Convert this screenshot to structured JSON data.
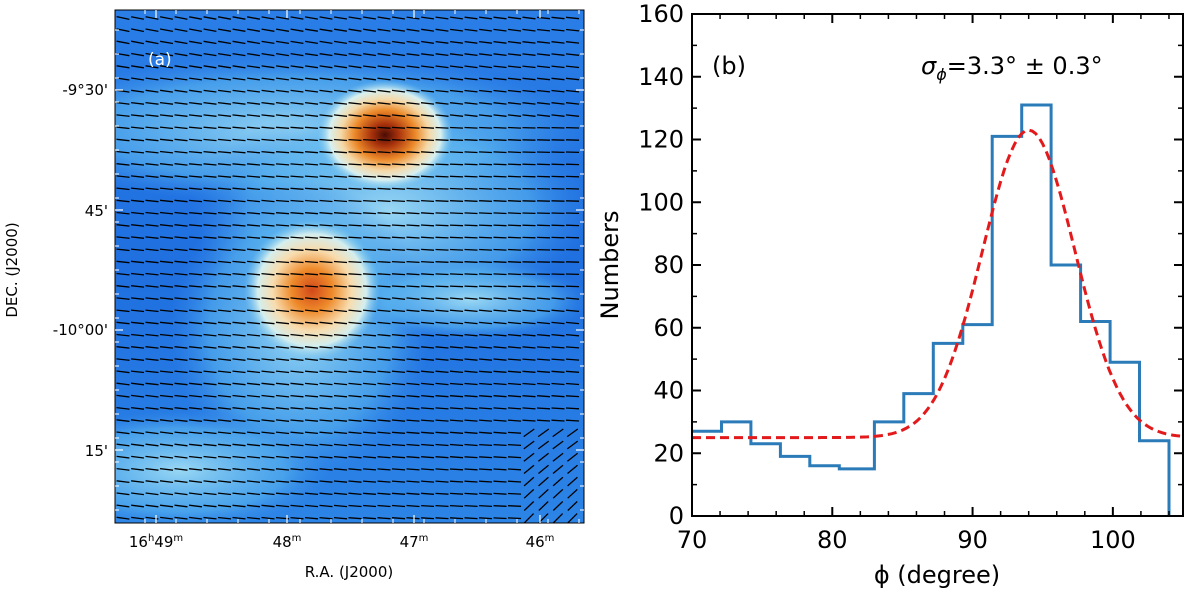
{
  "chart_data": [
    {
      "panel": "a",
      "type": "heatmap",
      "panel_label": "(a)",
      "xlabel": "R.A. (J2000)",
      "ylabel": "DEC. (J2000)",
      "x_ticks": [
        {
          "h": "16",
          "hs": "h",
          "m": "49",
          "ms": "m"
        },
        {
          "h": "",
          "hs": "",
          "m": "48",
          "ms": "m"
        },
        {
          "h": "",
          "hs": "",
          "m": "47",
          "ms": "m"
        },
        {
          "h": "",
          "hs": "",
          "m": "46",
          "ms": "m"
        }
      ],
      "y_ticks": [
        "-9°30'",
        "45'",
        "-10°00'",
        "15'"
      ],
      "colors": {
        "low": "#1f6fe0",
        "mid": "#e8f4f4",
        "high": "#e8711a",
        "peak": "#5a0f05"
      }
    },
    {
      "panel": "b",
      "type": "bar",
      "panel_label": "(b)",
      "annotation": "σϕ=3.3° ± 0.3°",
      "annotation_parts": {
        "symbol": "σ",
        "sub": "ϕ",
        "text": "=3.3° ± 0.3°"
      },
      "xlabel": "ϕ (degree)",
      "ylabel": "Numbers",
      "xlim": [
        70,
        105
      ],
      "ylim": [
        0,
        160
      ],
      "x_ticks": [
        70,
        80,
        90,
        100
      ],
      "y_ticks": [
        0,
        20,
        40,
        60,
        80,
        100,
        120,
        140,
        160
      ],
      "hist_edges": [
        70,
        72.1,
        74.2,
        76.3,
        78.4,
        80.5,
        83,
        85.1,
        87.2,
        89.3,
        91.4,
        93.5,
        95.6,
        97.7,
        99.8,
        101.9,
        104
      ],
      "hist_counts": [
        27,
        30,
        23,
        19,
        16,
        15,
        30,
        39,
        55,
        61,
        121,
        131,
        80,
        62,
        49,
        24
      ],
      "fit": {
        "type": "gaussian",
        "mean": 94,
        "amplitude": 98,
        "sigma": 3.3,
        "offset": 25
      },
      "colors": {
        "histogram": "#2b7bb9",
        "fit": "#e31a1c"
      }
    }
  ]
}
